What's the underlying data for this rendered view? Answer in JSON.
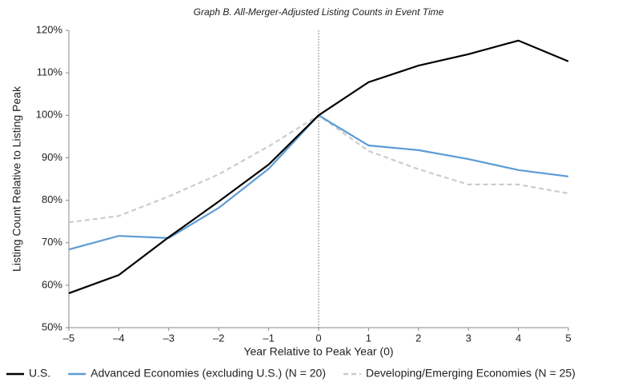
{
  "chart_data": {
    "type": "line",
    "title": "Graph B. All-Merger-Adjusted Listing Counts in Event Time",
    "x_label": "Year Relative to Peak Year (0)",
    "y_label": "Listing Count Relative to Listing Peak",
    "x": [
      -5,
      -4,
      -3,
      -2,
      -1,
      0,
      1,
      2,
      3,
      4,
      5
    ],
    "xlim": [
      -5,
      5
    ],
    "xticks": [
      {
        "value": -5,
        "label": "–5"
      },
      {
        "value": -4,
        "label": "–4"
      },
      {
        "value": -3,
        "label": "–3"
      },
      {
        "value": -2,
        "label": "–2"
      },
      {
        "value": -1,
        "label": "–1"
      },
      0,
      1,
      2,
      3,
      4,
      5
    ],
    "ylim": [
      50,
      120
    ],
    "yticks": [
      {
        "value": 50,
        "label": "50%"
      },
      {
        "value": 60,
        "label": "60%"
      },
      {
        "value": 70,
        "label": "70%"
      },
      {
        "value": 80,
        "label": "80%"
      },
      {
        "value": 90,
        "label": "90%"
      },
      {
        "value": 100,
        "label": "100%"
      },
      {
        "value": 110,
        "label": "110%"
      },
      {
        "value": 120,
        "label": "120%"
      }
    ],
    "vline": 0,
    "legend": "bottom",
    "series": [
      {
        "name": "U.S.",
        "color": "#000000",
        "dashed": false,
        "values": [
          58.1,
          62.4,
          71.3,
          79.7,
          88.4,
          100,
          107.8,
          111.7,
          114.4,
          117.6,
          112.7
        ]
      },
      {
        "name": "Advanced Economies (excluding U.S.) (N = 20)",
        "color": "#5b9bd5",
        "dashed": false,
        "values": [
          68.4,
          71.6,
          71.1,
          78.2,
          87.4,
          100,
          92.9,
          91.8,
          89.7,
          87.1,
          85.6
        ]
      },
      {
        "name": "Developing/Emerging Economies (N = 25)",
        "color": "#cccccc",
        "dashed": true,
        "values": [
          74.8,
          76.3,
          80.9,
          86.1,
          92.7,
          100,
          91.6,
          87.3,
          83.7,
          83.7,
          81.6
        ]
      }
    ]
  }
}
